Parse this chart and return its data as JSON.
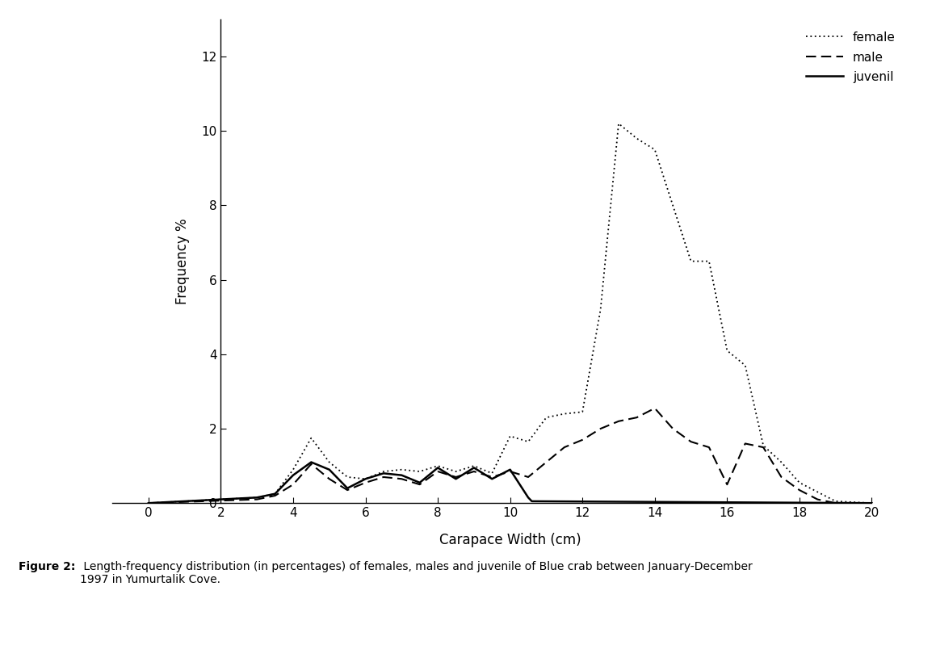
{
  "female_x": [
    0,
    3.0,
    3.5,
    4.0,
    4.5,
    5.0,
    5.5,
    6.0,
    6.5,
    7.0,
    7.5,
    8.0,
    8.5,
    9.0,
    9.5,
    10.0,
    10.5,
    11.0,
    11.5,
    12.0,
    12.5,
    13.0,
    13.5,
    14.0,
    14.5,
    15.0,
    15.5,
    16.0,
    16.5,
    17.0,
    17.5,
    18.0,
    18.5,
    19.0,
    20.0
  ],
  "female_y": [
    0,
    0.15,
    0.25,
    0.9,
    1.75,
    1.1,
    0.7,
    0.65,
    0.85,
    0.9,
    0.85,
    1.0,
    0.85,
    1.0,
    0.8,
    1.8,
    1.65,
    2.3,
    2.4,
    2.45,
    5.2,
    10.2,
    9.8,
    9.5,
    8.0,
    6.5,
    6.5,
    4.1,
    3.7,
    1.55,
    1.1,
    0.55,
    0.3,
    0.05,
    0
  ],
  "male_x": [
    0,
    3.0,
    3.5,
    4.0,
    4.5,
    5.0,
    5.5,
    6.0,
    6.5,
    7.0,
    7.5,
    8.0,
    8.5,
    9.0,
    9.5,
    10.0,
    10.5,
    11.0,
    11.5,
    12.0,
    12.5,
    13.0,
    13.5,
    14.0,
    14.5,
    15.0,
    15.5,
    16.0,
    16.5,
    17.0,
    17.5,
    18.0,
    18.5,
    19.0,
    20.0
  ],
  "male_y": [
    0,
    0.1,
    0.2,
    0.5,
    1.05,
    0.65,
    0.35,
    0.55,
    0.7,
    0.65,
    0.5,
    0.85,
    0.7,
    0.85,
    0.7,
    0.85,
    0.7,
    1.1,
    1.5,
    1.7,
    2.0,
    2.2,
    2.3,
    2.55,
    2.0,
    1.65,
    1.5,
    0.5,
    1.6,
    1.5,
    0.7,
    0.35,
    0.1,
    0.0,
    0
  ],
  "juvenil_x": [
    0,
    3.0,
    3.5,
    4.0,
    4.5,
    5.0,
    5.5,
    6.0,
    6.5,
    7.0,
    7.5,
    8.0,
    8.5,
    9.0,
    9.5,
    10.0,
    10.5,
    10.6,
    20.0
  ],
  "juvenil_y": [
    0,
    0.15,
    0.25,
    0.75,
    1.1,
    0.9,
    0.4,
    0.65,
    0.8,
    0.75,
    0.55,
    0.95,
    0.65,
    0.95,
    0.65,
    0.9,
    0.15,
    0.05,
    0
  ],
  "xlabel": "Carapace Width (cm)",
  "ylabel": "Frequency %",
  "xlim": [
    -1,
    21
  ],
  "ylim": [
    0,
    13
  ],
  "xticks": [
    0,
    2,
    4,
    6,
    8,
    10,
    12,
    14,
    16,
    18,
    20
  ],
  "yticks": [
    0,
    2,
    4,
    6,
    8,
    10,
    12
  ],
  "line_color": "#000000",
  "background_color": "#ffffff",
  "legend_labels": [
    "female",
    "male",
    "juvenil"
  ],
  "caption_bold": "Figure 2:",
  "caption_normal": " Length-frequency distribution (in percentages) of females, males and juvenile of Blue crab between January-December\n1997 in Yumurtalik Cove.",
  "fig_width": 11.59,
  "fig_height": 7.99
}
